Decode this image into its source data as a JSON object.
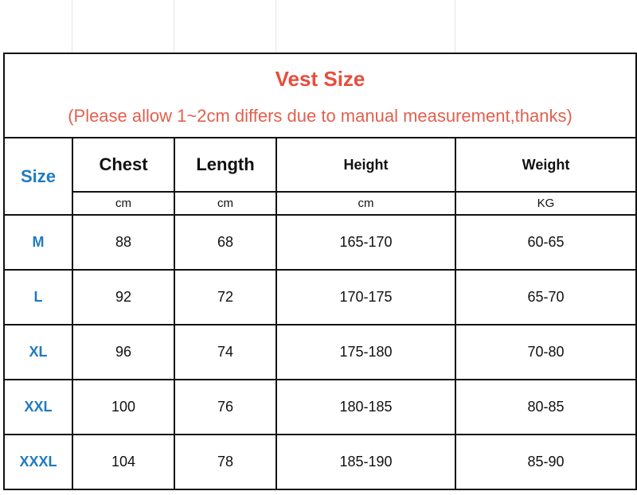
{
  "title": "Vest Size",
  "subtitle": "(Please allow 1~2cm differs due to manual measurement,thanks)",
  "headers": {
    "size": "Size",
    "chest": "Chest",
    "length": "Length",
    "height": "Height",
    "weight": "Weight"
  },
  "units": {
    "chest": "cm",
    "length": "cm",
    "height": "cm",
    "weight": "KG"
  },
  "colors": {
    "title": "#e84c3d",
    "size": "#1f7bc0"
  },
  "rows": [
    {
      "size": "M",
      "chest": "88",
      "length": "68",
      "height": "165-170",
      "weight": "60-65"
    },
    {
      "size": "L",
      "chest": "92",
      "length": "72",
      "height": "170-175",
      "weight": "65-70"
    },
    {
      "size": "XL",
      "chest": "96",
      "length": "74",
      "height": "175-180",
      "weight": "70-80"
    },
    {
      "size": "XXL",
      "chest": "100",
      "length": "76",
      "height": "180-185",
      "weight": "80-85"
    },
    {
      "size": "XXXL",
      "chest": "104",
      "length": "78",
      "height": "185-190",
      "weight": "85-90"
    }
  ]
}
